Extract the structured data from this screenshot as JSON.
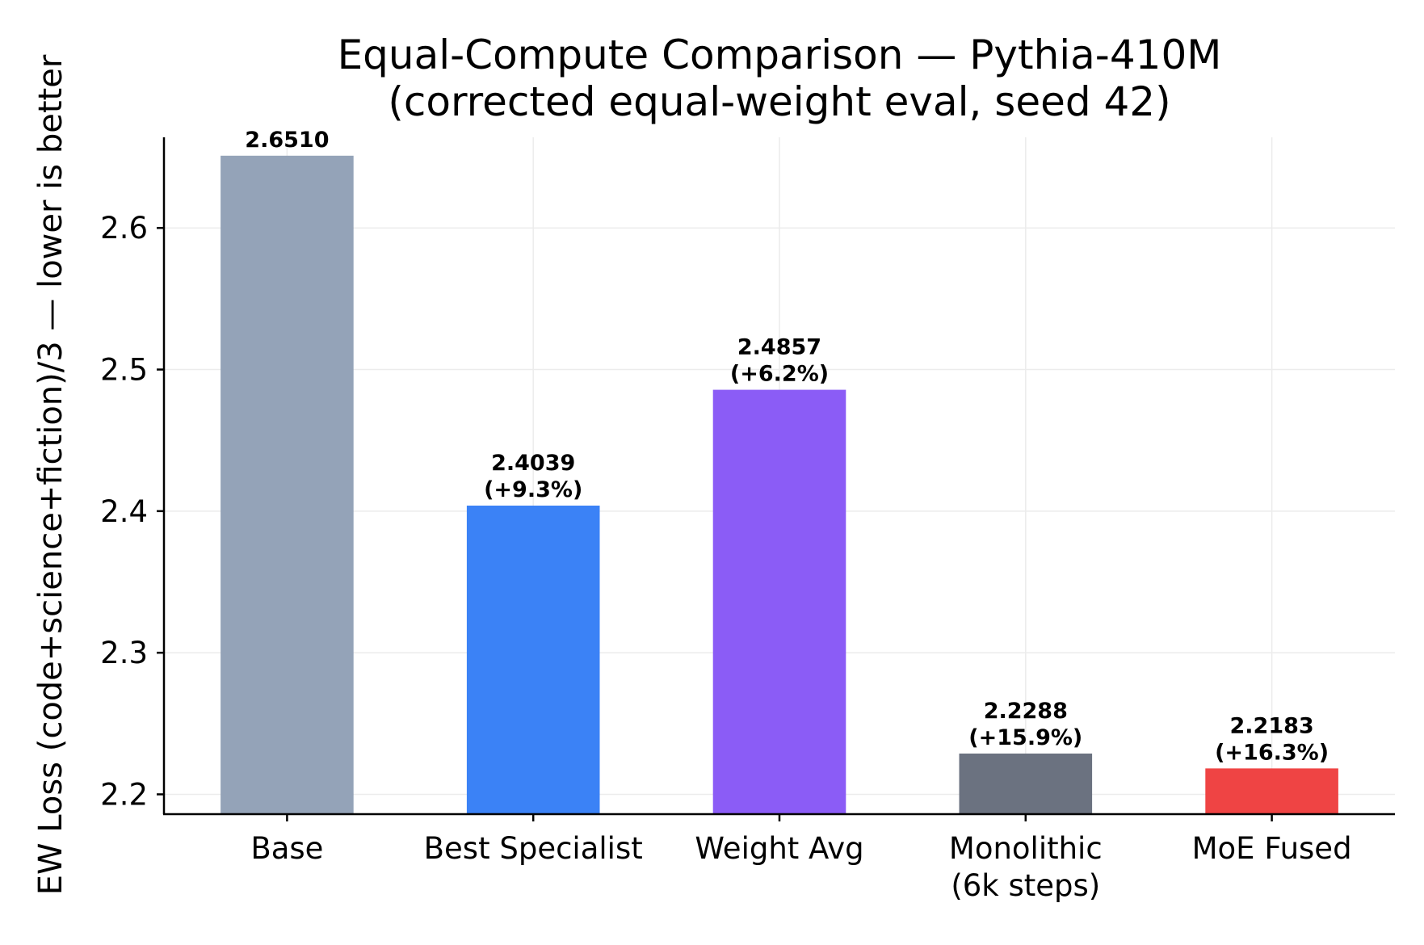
{
  "chart_data": {
    "type": "bar",
    "title": [
      "Equal-Compute Comparison — Pythia-410M",
      "(corrected equal-weight eval, seed 42)"
    ],
    "xlabel": "",
    "ylabel": "EW Loss (code+science+fiction)/3 — lower is better",
    "ylim": [
      2.186,
      2.664
    ],
    "yticks": [
      2.2,
      2.3,
      2.4,
      2.5,
      2.6
    ],
    "ytick_labels": [
      "2.2",
      "2.3",
      "2.4",
      "2.5",
      "2.6"
    ],
    "grid": true,
    "categories": [
      [
        "Base"
      ],
      [
        "Best Specialist"
      ],
      [
        "Weight Avg"
      ],
      [
        "Monolithic",
        "(6k steps)"
      ],
      [
        "MoE Fused"
      ]
    ],
    "values": [
      2.651,
      2.4039,
      2.4857,
      2.2288,
      2.2183
    ],
    "value_labels": [
      [
        "2.6510"
      ],
      [
        "2.4039",
        "(+9.3%)"
      ],
      [
        "2.4857",
        "(+6.2%)"
      ],
      [
        "2.2288",
        "(+15.9%)"
      ],
      [
        "2.2183",
        "(+16.3%)"
      ]
    ],
    "colors": [
      "#94a3b8",
      "#3b82f6",
      "#8b5cf6",
      "#6b7280",
      "#ef4444"
    ]
  }
}
